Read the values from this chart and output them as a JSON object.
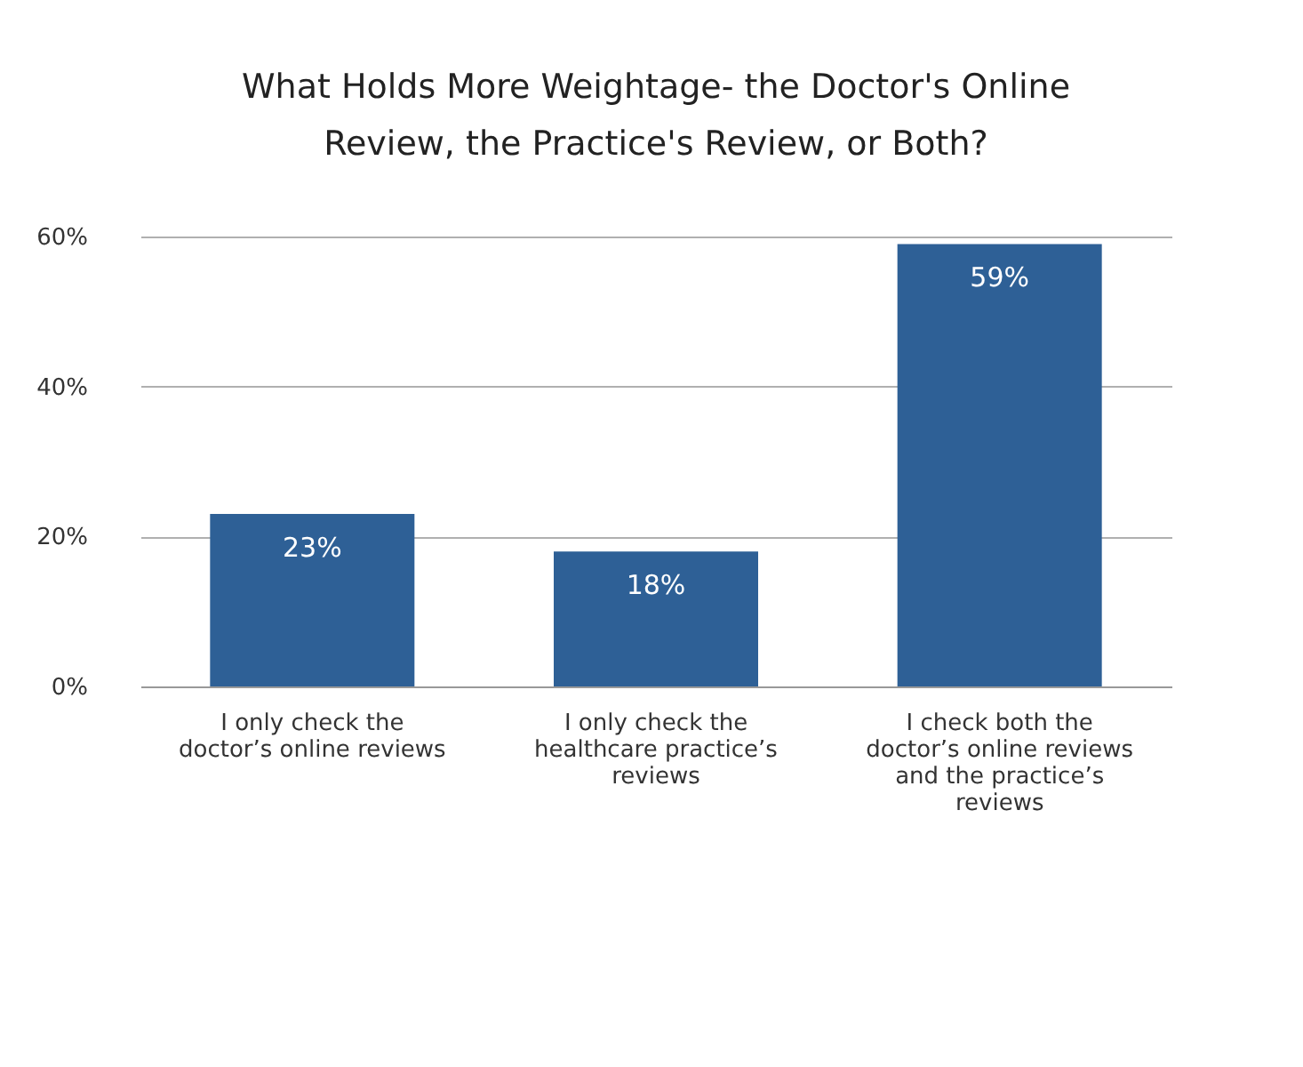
{
  "chart_data": {
    "type": "bar",
    "title": "What Holds More Weightage- the Doctor's Online Review, the Practice's Review, or Both?",
    "categories": [
      "I only check the doctor’s online reviews",
      "I only check the healthcare practice’s reviews",
      "I check both the doctor’s online reviews and the practice’s reviews"
    ],
    "values": [
      23,
      18,
      59
    ],
    "color": "#2e6096",
    "value_labels": [
      "23%",
      "18%",
      "59%"
    ],
    "ylim": [
      0,
      60
    ],
    "yticks": [
      {
        "value": 0,
        "label": "0%"
      },
      {
        "value": 20,
        "label": "20%"
      },
      {
        "value": 40,
        "label": "40%"
      },
      {
        "value": 60,
        "label": "60%"
      }
    ],
    "grid": "y"
  }
}
